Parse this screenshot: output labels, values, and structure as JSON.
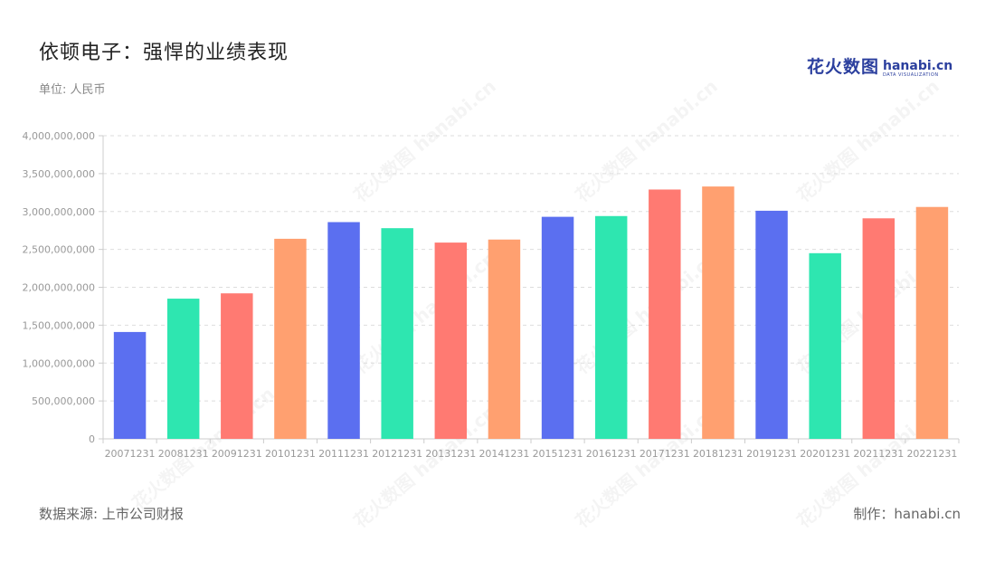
{
  "header": {
    "title": "依顿电子：强悍的业绩表现",
    "subtitle": "单位: 人民币"
  },
  "logo": {
    "cn": "花火数图",
    "en": "hanabi.cn",
    "sub": "DATA VISUALIZATION"
  },
  "footer": {
    "source": "数据来源: 上市公司财报",
    "credit": "制作：hanabi.cn"
  },
  "watermark_text": "花火数图 hanabi.cn",
  "colors": {
    "palette": [
      "#5b6ff0",
      "#2ee6b0",
      "#ff7a72",
      "#ffa070"
    ],
    "grid": "#dddddd",
    "axis": "#cccccc"
  },
  "chart_data": {
    "type": "bar",
    "title": "依顿电子：强悍的业绩表现",
    "xlabel": "",
    "ylabel": "",
    "categories": [
      "20071231",
      "20081231",
      "20091231",
      "20101231",
      "20111231",
      "20121231",
      "20131231",
      "20141231",
      "20151231",
      "20161231",
      "20171231",
      "20181231",
      "20191231",
      "20201231",
      "20211231",
      "20221231"
    ],
    "values": [
      1410000000,
      1850000000,
      1920000000,
      2640000000,
      2860000000,
      2780000000,
      2590000000,
      2630000000,
      2930000000,
      2940000000,
      3290000000,
      3330000000,
      3010000000,
      2450000000,
      2910000000,
      3060000000
    ],
    "ylim": [
      0,
      4000000000
    ],
    "yticks": [
      0,
      500000000,
      1000000000,
      1500000000,
      2000000000,
      2500000000,
      3000000000,
      3500000000,
      4000000000
    ],
    "ytick_labels": [
      "0",
      "500,000,000",
      "1,000,000,000",
      "1,500,000,000",
      "2,000,000,000",
      "2,500,000,000",
      "3,000,000,000",
      "3,500,000,000",
      "4,000,000,000"
    ],
    "grid": true,
    "legend": "none"
  }
}
